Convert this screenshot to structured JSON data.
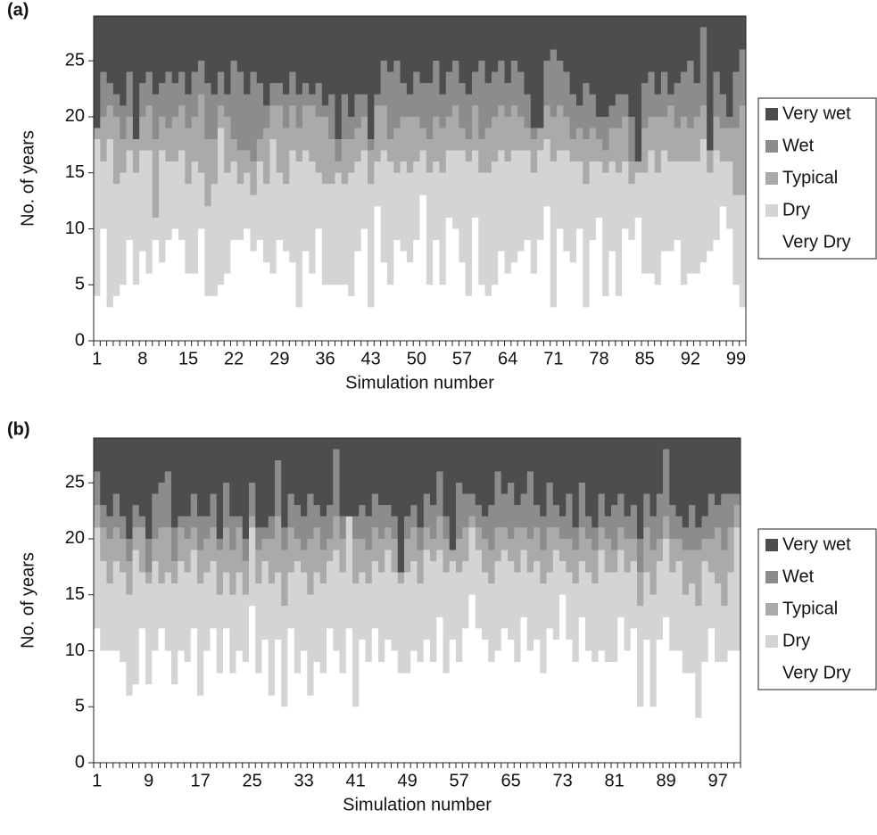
{
  "chart_data": [
    {
      "type": "bar",
      "stacked": true,
      "panel_label": "(a)",
      "xlabel": "Simulation number",
      "ylabel": "No. of years",
      "categories": [
        "1",
        null,
        null,
        null,
        null,
        null,
        null,
        "8",
        null,
        null,
        null,
        null,
        null,
        null,
        "15",
        null,
        null,
        null,
        null,
        null,
        null,
        "22",
        null,
        null,
        null,
        null,
        null,
        null,
        "29",
        null,
        null,
        null,
        null,
        null,
        null,
        "36",
        null,
        null,
        null,
        null,
        null,
        null,
        "43",
        null,
        null,
        null,
        null,
        null,
        null,
        "50",
        null,
        null,
        null,
        null,
        null,
        null,
        "57",
        null,
        null,
        null,
        null,
        null,
        null,
        "64",
        null,
        null,
        null,
        null,
        null,
        null,
        "71",
        null,
        null,
        null,
        null,
        null,
        null,
        "78",
        null,
        null,
        null,
        null,
        null,
        null,
        "85",
        null,
        null,
        null,
        null,
        null,
        null,
        "92",
        null,
        null,
        null,
        null,
        null,
        null,
        "99",
        null
      ],
      "ylim": [
        0,
        29
      ],
      "yticks": [
        0,
        5,
        10,
        15,
        20,
        25
      ],
      "series": [
        {
          "name": "Very wet",
          "color": "#4d4d4d",
          "values": [
            10,
            5,
            6,
            7,
            8,
            5,
            11,
            6,
            5,
            7,
            6,
            5,
            6,
            5,
            7,
            5,
            4,
            6,
            7,
            5,
            7,
            4,
            5,
            7,
            5,
            6,
            8,
            6,
            6,
            7,
            5,
            7,
            6,
            7,
            6,
            8,
            7,
            11,
            7,
            9,
            7,
            7,
            11,
            7,
            4,
            5,
            4,
            6,
            7,
            5,
            6,
            6,
            4,
            7,
            5,
            4,
            6,
            7,
            5,
            4,
            6,
            5,
            4,
            6,
            4,
            5,
            7,
            10,
            10,
            4,
            3,
            4,
            5,
            7,
            8,
            6,
            7,
            9,
            9,
            8,
            7,
            7,
            9,
            13,
            6,
            5,
            7,
            5,
            7,
            6,
            5,
            4,
            6,
            1,
            12,
            5,
            7,
            9,
            5,
            3
          ]
        },
        {
          "name": "Wet",
          "color": "#8c8c8c",
          "values": [
            0,
            4,
            2,
            2,
            3,
            4,
            0,
            3,
            3,
            4,
            3,
            5,
            3,
            3,
            3,
            4,
            3,
            5,
            4,
            3,
            2,
            7,
            7,
            5,
            8,
            5,
            2,
            2,
            2,
            3,
            3,
            3,
            2,
            1,
            3,
            1,
            4,
            2,
            4,
            2,
            3,
            2,
            1,
            1,
            4,
            6,
            6,
            3,
            2,
            4,
            4,
            5,
            5,
            3,
            4,
            4,
            4,
            4,
            3,
            7,
            4,
            4,
            4,
            3,
            4,
            4,
            3,
            1,
            0,
            4,
            6,
            4,
            4,
            4,
            2,
            5,
            3,
            2,
            3,
            2,
            3,
            2,
            4,
            0,
            4,
            4,
            2,
            4,
            1,
            4,
            4,
            6,
            3,
            7,
            0,
            4,
            3,
            1,
            5,
            5
          ]
        },
        {
          "name": "Typical",
          "color": "#aaaaaa",
          "values": [
            1,
            4,
            3,
            6,
            3,
            3,
            3,
            3,
            4,
            7,
            3,
            3,
            4,
            4,
            5,
            4,
            7,
            6,
            4,
            2,
            5,
            2,
            3,
            2,
            3,
            2,
            5,
            3,
            6,
            5,
            4,
            3,
            4,
            5,
            5,
            6,
            4,
            1,
            4,
            3,
            3,
            3,
            3,
            5,
            4,
            2,
            4,
            4,
            5,
            4,
            2,
            3,
            4,
            4,
            3,
            4,
            2,
            2,
            4,
            3,
            4,
            4,
            4,
            4,
            4,
            3,
            2,
            3,
            2,
            3,
            4,
            4,
            3,
            2,
            3,
            4,
            3,
            2,
            2,
            3,
            4,
            4,
            2,
            1,
            4,
            3,
            5,
            3,
            5,
            3,
            4,
            3,
            4,
            3,
            2,
            3,
            3,
            3,
            6,
            8
          ]
        },
        {
          "name": "Dry",
          "color": "#d4d4d4",
          "values": [
            14,
            6,
            15,
            10,
            10,
            8,
            10,
            9,
            11,
            2,
            10,
            7,
            6,
            8,
            8,
            10,
            5,
            8,
            10,
            14,
            9,
            7,
            5,
            5,
            5,
            7,
            7,
            12,
            6,
            6,
            10,
            13,
            9,
            10,
            5,
            9,
            9,
            10,
            9,
            11,
            8,
            7,
            11,
            4,
            10,
            11,
            6,
            8,
            8,
            7,
            4,
            10,
            7,
            10,
            6,
            7,
            10,
            12,
            6,
            10,
            11,
            11,
            9,
            10,
            10,
            9,
            8,
            9,
            8,
            6,
            13,
            7,
            9,
            9,
            6,
            11,
            7,
            5,
            11,
            8,
            11,
            6,
            5,
            4,
            9,
            11,
            10,
            9,
            8,
            7,
            11,
            10,
            10,
            11,
            7,
            8,
            4,
            6,
            8,
            10
          ]
        },
        {
          "name": "Very Dry",
          "color": "#ffffff",
          "values": [
            4,
            10,
            3,
            4,
            5,
            9,
            5,
            8,
            6,
            9,
            7,
            9,
            10,
            9,
            6,
            6,
            10,
            4,
            4,
            5,
            6,
            9,
            9,
            10,
            8,
            9,
            7,
            6,
            9,
            8,
            7,
            3,
            8,
            6,
            10,
            5,
            5,
            5,
            5,
            4,
            8,
            10,
            3,
            12,
            7,
            5,
            9,
            8,
            7,
            9,
            13,
            5,
            9,
            5,
            11,
            10,
            7,
            4,
            11,
            5,
            4,
            5,
            8,
            6,
            7,
            8,
            9,
            6,
            9,
            12,
            3,
            10,
            8,
            7,
            10,
            3,
            9,
            11,
            4,
            8,
            4,
            10,
            9,
            11,
            6,
            6,
            5,
            8,
            8,
            9,
            5,
            6,
            6,
            7,
            8,
            9,
            12,
            10,
            5,
            3
          ]
        }
      ]
    },
    {
      "type": "bar",
      "stacked": true,
      "panel_label": "(b)",
      "xlabel": "Simulation number",
      "ylabel": "No. of years",
      "categories": [
        "1",
        null,
        null,
        null,
        null,
        null,
        null,
        null,
        "9",
        null,
        null,
        null,
        null,
        null,
        null,
        null,
        "17",
        null,
        null,
        null,
        null,
        null,
        null,
        null,
        "25",
        null,
        null,
        null,
        null,
        null,
        null,
        null,
        "33",
        null,
        null,
        null,
        null,
        null,
        null,
        null,
        "41",
        null,
        null,
        null,
        null,
        null,
        null,
        null,
        "49",
        null,
        null,
        null,
        null,
        null,
        null,
        null,
        "57",
        null,
        null,
        null,
        null,
        null,
        null,
        null,
        "65",
        null,
        null,
        null,
        null,
        null,
        null,
        null,
        "73",
        null,
        null,
        null,
        null,
        null,
        null,
        null,
        "81",
        null,
        null,
        null,
        null,
        null,
        null,
        null,
        "89",
        null,
        null,
        null,
        null,
        null,
        null,
        null,
        "97",
        null,
        null,
        null
      ],
      "ylim": [
        0,
        29
      ],
      "yticks": [
        0,
        5,
        10,
        15,
        20,
        25
      ],
      "series": [
        {
          "name": "Very wet",
          "color": "#4d4d4d",
          "values": [
            3,
            6,
            7,
            5,
            7,
            9,
            6,
            7,
            9,
            5,
            4,
            3,
            8,
            7,
            7,
            5,
            7,
            7,
            5,
            9,
            4,
            7,
            7,
            9,
            4,
            8,
            8,
            7,
            2,
            8,
            5,
            6,
            7,
            5,
            6,
            7,
            6,
            1,
            7,
            7,
            7,
            6,
            7,
            5,
            6,
            6,
            7,
            12,
            7,
            6,
            8,
            5,
            6,
            3,
            7,
            10,
            4,
            5,
            5,
            6,
            7,
            6,
            3,
            5,
            4,
            6,
            5,
            3,
            6,
            7,
            4,
            6,
            7,
            5,
            8,
            4,
            7,
            8,
            5,
            7,
            6,
            5,
            7,
            6,
            9,
            5,
            7,
            5,
            1,
            6,
            7,
            8,
            6,
            8,
            7,
            5,
            6,
            5,
            5,
            5
          ]
        },
        {
          "name": "Wet",
          "color": "#8c8c8c",
          "values": [
            3,
            2,
            2,
            3,
            2,
            2,
            2,
            1,
            3,
            4,
            4,
            5,
            3,
            1,
            2,
            3,
            3,
            2,
            3,
            1,
            4,
            3,
            1,
            2,
            3,
            2,
            1,
            2,
            5,
            2,
            3,
            3,
            3,
            4,
            2,
            3,
            3,
            6,
            2,
            0,
            2,
            3,
            3,
            3,
            3,
            2,
            2,
            0,
            2,
            2,
            2,
            3,
            3,
            4,
            2,
            0,
            5,
            3,
            2,
            2,
            2,
            4,
            5,
            3,
            5,
            2,
            3,
            6,
            2,
            3,
            4,
            2,
            2,
            4,
            2,
            4,
            2,
            2,
            3,
            2,
            4,
            3,
            2,
            3,
            3,
            3,
            3,
            4,
            6,
            3,
            2,
            2,
            4,
            2,
            2,
            4,
            2,
            5,
            3,
            1
          ]
        },
        {
          "name": "Typical",
          "color": "#aaaaaa",
          "values": [
            2,
            3,
            4,
            3,
            3,
            3,
            2,
            4,
            1,
            2,
            5,
            4,
            2,
            3,
            3,
            2,
            3,
            3,
            3,
            4,
            4,
            4,
            4,
            3,
            1,
            3,
            2,
            4,
            5,
            5,
            4,
            2,
            2,
            5,
            4,
            3,
            2,
            3,
            3,
            0,
            4,
            3,
            3,
            3,
            3,
            2,
            3,
            1,
            3,
            3,
            3,
            2,
            2,
            3,
            3,
            1,
            3,
            3,
            1,
            2,
            3,
            3,
            3,
            2,
            2,
            4,
            2,
            3,
            3,
            3,
            4,
            2,
            2,
            3,
            3,
            3,
            3,
            3,
            2,
            3,
            2,
            2,
            3,
            2,
            3,
            4,
            4,
            2,
            2,
            3,
            2,
            4,
            3,
            5,
            2,
            3,
            5,
            5,
            4,
            2
          ]
        },
        {
          "name": "Dry",
          "color": "#d4d4d4",
          "values": [
            9,
            8,
            6,
            8,
            8,
            9,
            12,
            5,
            9,
            8,
            4,
            7,
            9,
            8,
            8,
            7,
            10,
            7,
            6,
            7,
            5,
            7,
            7,
            6,
            7,
            8,
            7,
            10,
            6,
            9,
            5,
            10,
            7,
            9,
            8,
            8,
            6,
            9,
            9,
            10,
            11,
            6,
            7,
            6,
            8,
            8,
            7,
            8,
            9,
            8,
            7,
            8,
            9,
            6,
            9,
            7,
            8,
            6,
            6,
            7,
            6,
            7,
            8,
            7,
            7,
            8,
            6,
            7,
            7,
            8,
            5,
            8,
            3,
            6,
            7,
            5,
            7,
            7,
            9,
            8,
            8,
            6,
            7,
            6,
            9,
            6,
            10,
            7,
            7,
            7,
            8,
            7,
            8,
            10,
            9,
            5,
            7,
            5,
            7,
            11
          ]
        },
        {
          "name": "Very Dry",
          "color": "#ffffff",
          "values": [
            12,
            10,
            10,
            10,
            9,
            6,
            7,
            12,
            7,
            10,
            12,
            10,
            7,
            10,
            9,
            12,
            6,
            10,
            12,
            8,
            12,
            8,
            10,
            9,
            14,
            8,
            11,
            6,
            11,
            5,
            12,
            8,
            10,
            6,
            9,
            8,
            12,
            10,
            8,
            12,
            5,
            11,
            9,
            12,
            9,
            11,
            10,
            8,
            8,
            10,
            9,
            11,
            9,
            13,
            8,
            11,
            9,
            12,
            15,
            12,
            11,
            9,
            10,
            12,
            11,
            9,
            13,
            10,
            11,
            8,
            12,
            11,
            15,
            11,
            9,
            13,
            10,
            9,
            10,
            9,
            9,
            13,
            10,
            12,
            5,
            11,
            5,
            11,
            13,
            10,
            10,
            8,
            8,
            4,
            9,
            12,
            9,
            9,
            10,
            10
          ]
        }
      ]
    }
  ]
}
